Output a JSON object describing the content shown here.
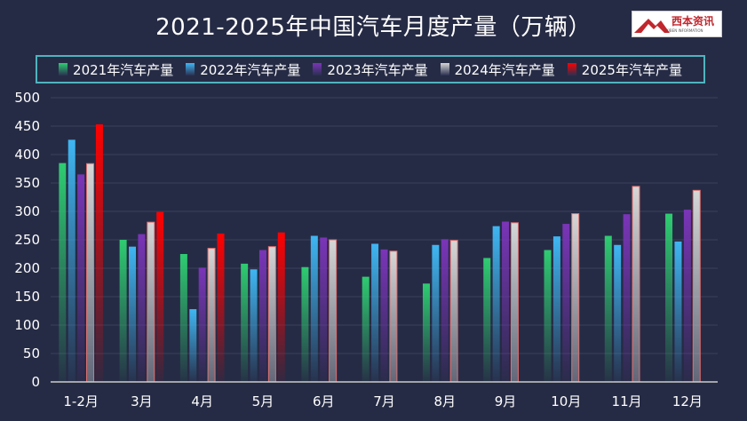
{
  "title": "2021-2025年中国汽车月度产量（万辆）",
  "logo": {
    "text": "西本资讯",
    "subtext": "XIBEN INFORMATION"
  },
  "colors": {
    "background": "#262b45",
    "grid": "#3a3f5c",
    "axis": "#cccccc",
    "legend_border": "#4fb3bf"
  },
  "chart_data": {
    "type": "bar",
    "title": "2021-2025年中国汽车月度产量（万辆）",
    "xlabel": "",
    "ylabel": "",
    "ylim": [
      0,
      500
    ],
    "yticks": [
      0,
      50,
      100,
      150,
      200,
      250,
      300,
      350,
      400,
      450,
      500
    ],
    "legend_position": "top",
    "grid": true,
    "categories": [
      "1-2月",
      "3月",
      "4月",
      "5月",
      "6月",
      "7月",
      "8月",
      "9月",
      "10月",
      "11月",
      "12月"
    ],
    "series": [
      {
        "name": "2021年汽车产量",
        "color": "#2ecc71",
        "values": [
          385,
          250,
          225,
          208,
          202,
          185,
          173,
          218,
          232,
          257,
          296
        ]
      },
      {
        "name": "2022年汽车产量",
        "color": "#3fb6f2",
        "values": [
          426,
          238,
          128,
          198,
          257,
          243,
          241,
          274,
          256,
          241,
          247
        ]
      },
      {
        "name": "2023年汽车产量",
        "color": "#7a35b8",
        "values": [
          365,
          260,
          201,
          232,
          254,
          233,
          251,
          282,
          278,
          295,
          303
        ]
      },
      {
        "name": "2024年汽车产量",
        "color": "#d6d6d6",
        "values": [
          384,
          281,
          235,
          238,
          250,
          230,
          249,
          280,
          296,
          344,
          337
        ]
      },
      {
        "name": "2025年汽车产量",
        "color": "#ff0000",
        "values": [
          453,
          299,
          261,
          263,
          null,
          null,
          null,
          null,
          null,
          null,
          null
        ]
      }
    ]
  }
}
